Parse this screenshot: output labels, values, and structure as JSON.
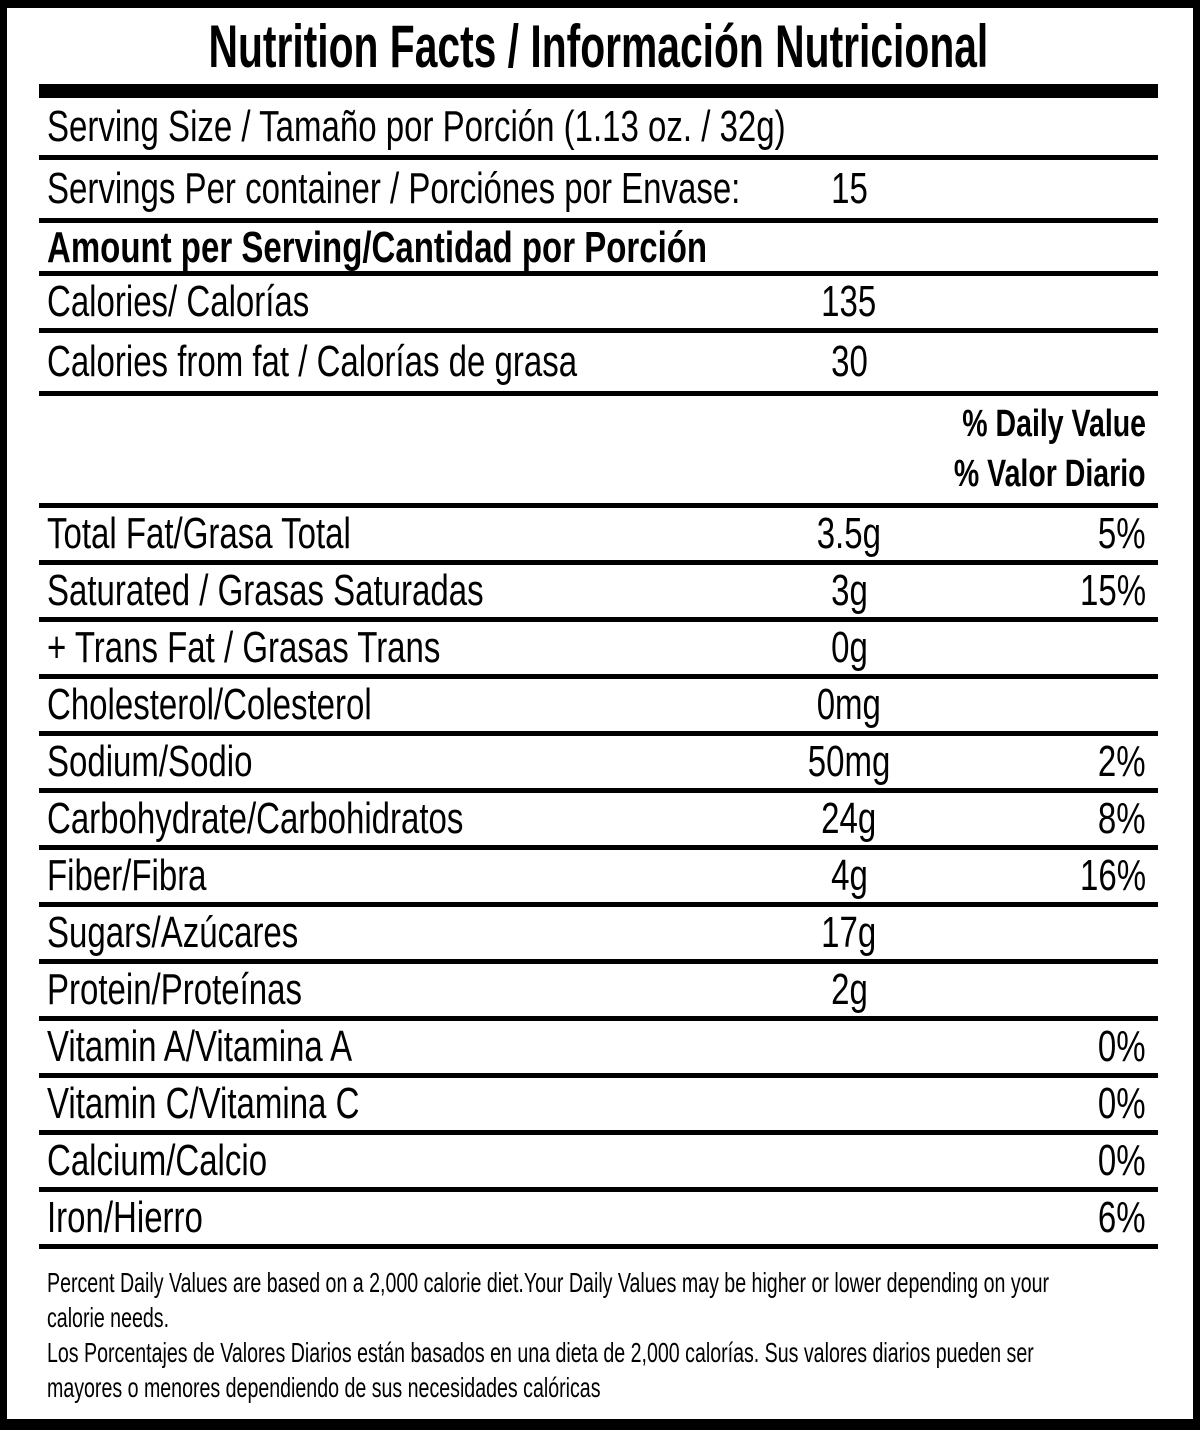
{
  "title": "Nutrition Facts / Información Nutricional",
  "rows": {
    "serving_size": "Serving Size / Tamaño por Porción (1.13 oz. / 32g)",
    "servings_per_container": {
      "label": "Servings Per container / Porciónes por Envase:",
      "value": "15"
    },
    "amount_per_serving_heading": "Amount per Serving/Cantidad por Porción",
    "calories": {
      "label": "Calories/ Calorías",
      "value": "135"
    },
    "calories_from_fat": {
      "label": "Calories from fat / Calorías de grasa",
      "value": "30"
    }
  },
  "daily_value_heading": {
    "english": "% Daily Value",
    "spanish": "% Valor Diario"
  },
  "nutrients": [
    {
      "label": "Total Fat/Grasa Total",
      "amount": "3.5g",
      "dv": "5%"
    },
    {
      "label": "Saturated / Grasas Saturadas",
      "amount": "3g",
      "dv": "15%"
    },
    {
      "label": "+ Trans Fat / Grasas Trans",
      "amount": "0g",
      "dv": ""
    },
    {
      "label": "Cholesterol/Colesterol",
      "amount": "0mg",
      "dv": ""
    },
    {
      "label": "Sodium/Sodio",
      "amount": "50mg",
      "dv": "2%"
    },
    {
      "label": "Carbohydrate/Carbohidratos",
      "amount": "24g",
      "dv": "8%"
    },
    {
      "label": "Fiber/Fibra",
      "amount": "4g",
      "dv": "16%"
    },
    {
      "label": "Sugars/Azúcares",
      "amount": "17g",
      "dv": ""
    },
    {
      "label": "Protein/Proteínas",
      "amount": "2g",
      "dv": ""
    },
    {
      "label": "Vitamin A/Vitamina A",
      "amount": "",
      "dv": "0%"
    },
    {
      "label": "Vitamin C/Vitamina C",
      "amount": "",
      "dv": "0%"
    },
    {
      "label": "Calcium/Calcio",
      "amount": "",
      "dv": "0%"
    },
    {
      "label": "Iron/Hierro",
      "amount": "",
      "dv": "6%"
    }
  ],
  "footnote": {
    "lines": [
      "Percent Daily Values are based on a 2,000 calorie diet.Your Daily Values may be higher or lower depending on your",
      "calorie needs.",
      "Los Porcentajes de Valores Diarios están basados en una dieta de 2,000 calorías. Sus valores diarios pueden ser",
      "mayores o menores dependiendo de sus necesidades calóricas"
    ]
  },
  "colors": {
    "ink": "#000000",
    "background": "#ffffff"
  }
}
